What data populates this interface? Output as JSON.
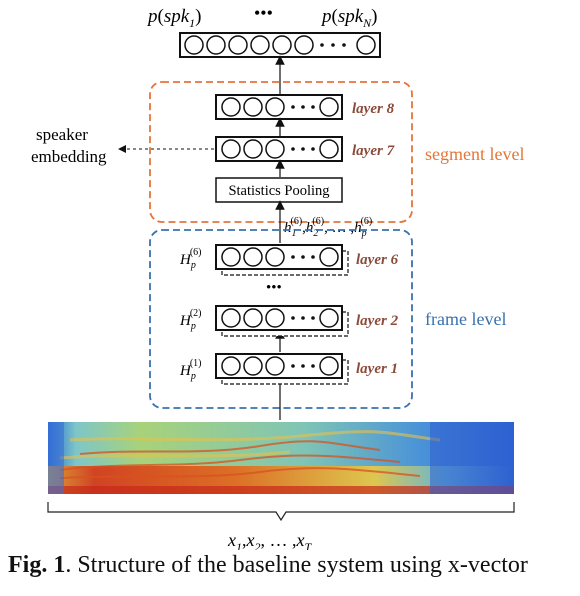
{
  "output": {
    "label_left_prefix": "p",
    "label_left_inner": "spk",
    "label_left_sub": "1",
    "label_right_prefix": "p",
    "label_right_inner": "spk",
    "label_right_sub": "N",
    "dots": "•••"
  },
  "segment": {
    "title": "segment level",
    "color": "#e4763a",
    "layer8": "layer 8",
    "layer7": "layer 7",
    "pooling": "Statistics Pooling",
    "embedding_line1": "speaker",
    "embedding_line2": "embedding"
  },
  "frame": {
    "title": "frame level",
    "color": "#3a70b0",
    "layer6": "layer 6",
    "layer2": "layer 2",
    "layer1": "layer 1",
    "H": "H",
    "H_sub": "p",
    "sup6": "(6)",
    "sup2": "(2)",
    "sup1": "(1)",
    "h_seq_h": "h",
    "h_seq_sub1": "1",
    "h_seq_sub2": "2",
    "h_seq_subp": "p",
    "h_seq_sup": "(6)",
    "h_seq_sep": ",",
    "h_seq_ellipsis": ", … ,",
    "between_dots": "•••"
  },
  "layer_label_color": "#8b4a3a",
  "input": {
    "x": "x",
    "sub1": "1",
    "sub2": "2",
    "subT": "T",
    "sep": ",",
    "ellipsis": ", … ,"
  },
  "caption": {
    "fig": "Fig. 1",
    "text": ". Structure of the baseline system using x-vector"
  }
}
